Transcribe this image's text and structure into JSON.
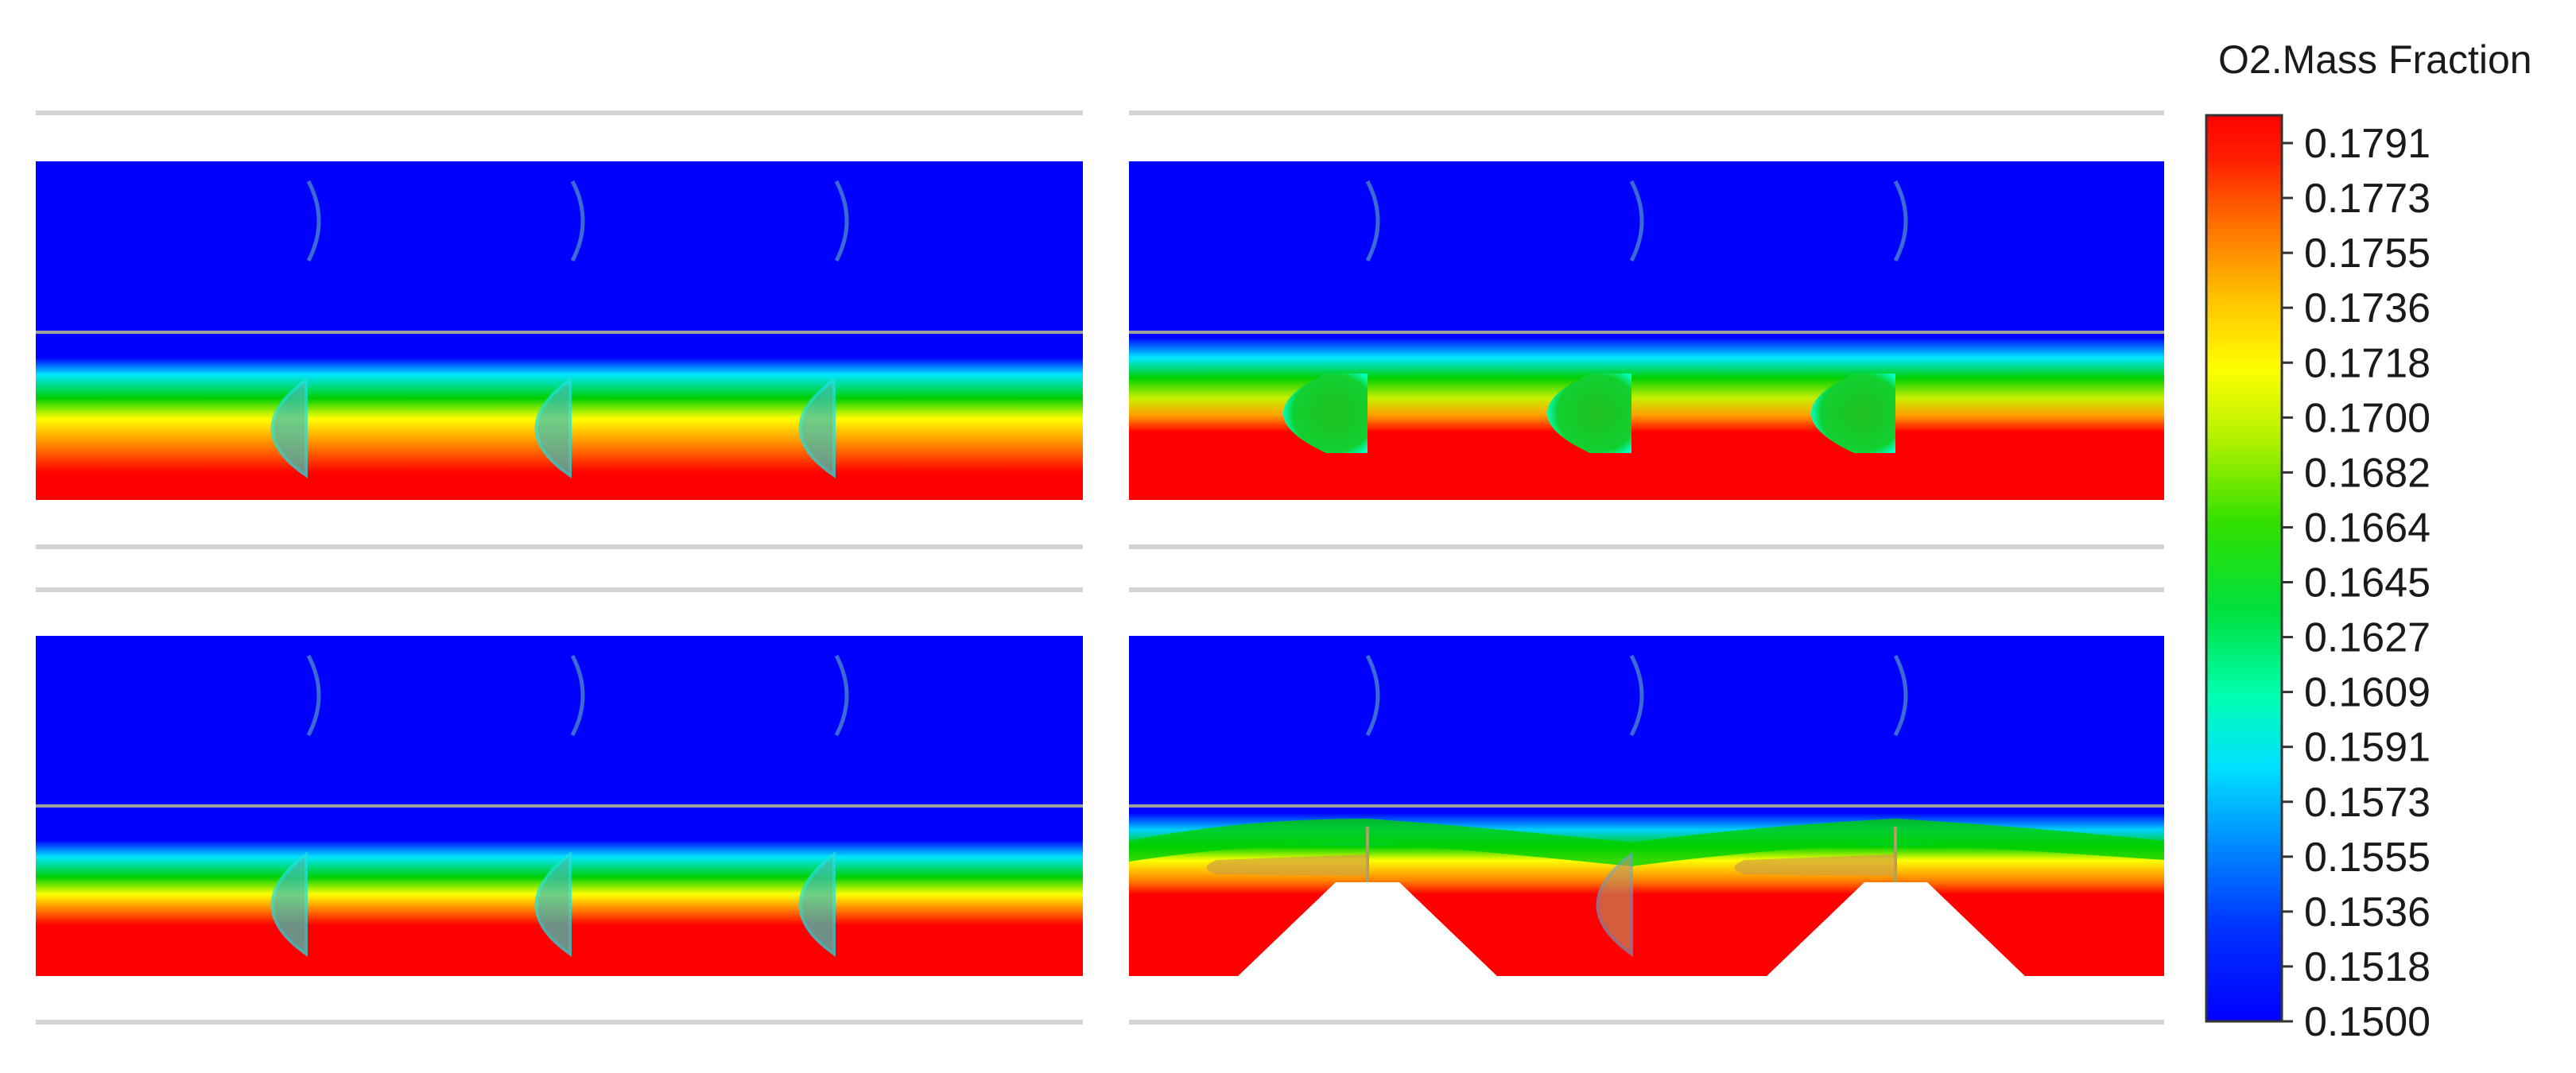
{
  "legend": {
    "title": "O2.Mass Fraction",
    "ticks": [
      "0.1791",
      "0.1773",
      "0.1755",
      "0.1736",
      "0.1718",
      "0.1700",
      "0.1682",
      "0.1664",
      "0.1645",
      "0.1627",
      "0.1609",
      "0.1591",
      "0.1573",
      "0.1555",
      "0.1536",
      "0.1518",
      "0.1500"
    ],
    "min": 0.15,
    "max": 0.1791,
    "colors": [
      "#0000ff",
      "#0050ff",
      "#00b0ff",
      "#00ffff",
      "#00ff90",
      "#00e040",
      "#00d000",
      "#60e000",
      "#c0f000",
      "#ffff00",
      "#ffc000",
      "#ff8000",
      "#ff3000",
      "#ff0000"
    ]
  },
  "panels": [
    {
      "id": "top-left",
      "field_color_low": "#0000ff",
      "field_color_high": "#ff0000"
    },
    {
      "id": "top-right",
      "field_color_low": "#0000ff",
      "field_color_high": "#ff0000"
    },
    {
      "id": "bottom-left",
      "field_color_low": "#0000ff",
      "field_color_high": "#ff0000"
    },
    {
      "id": "bottom-right",
      "field_color_low": "#0000ff",
      "field_color_high": "#ff0000"
    }
  ]
}
